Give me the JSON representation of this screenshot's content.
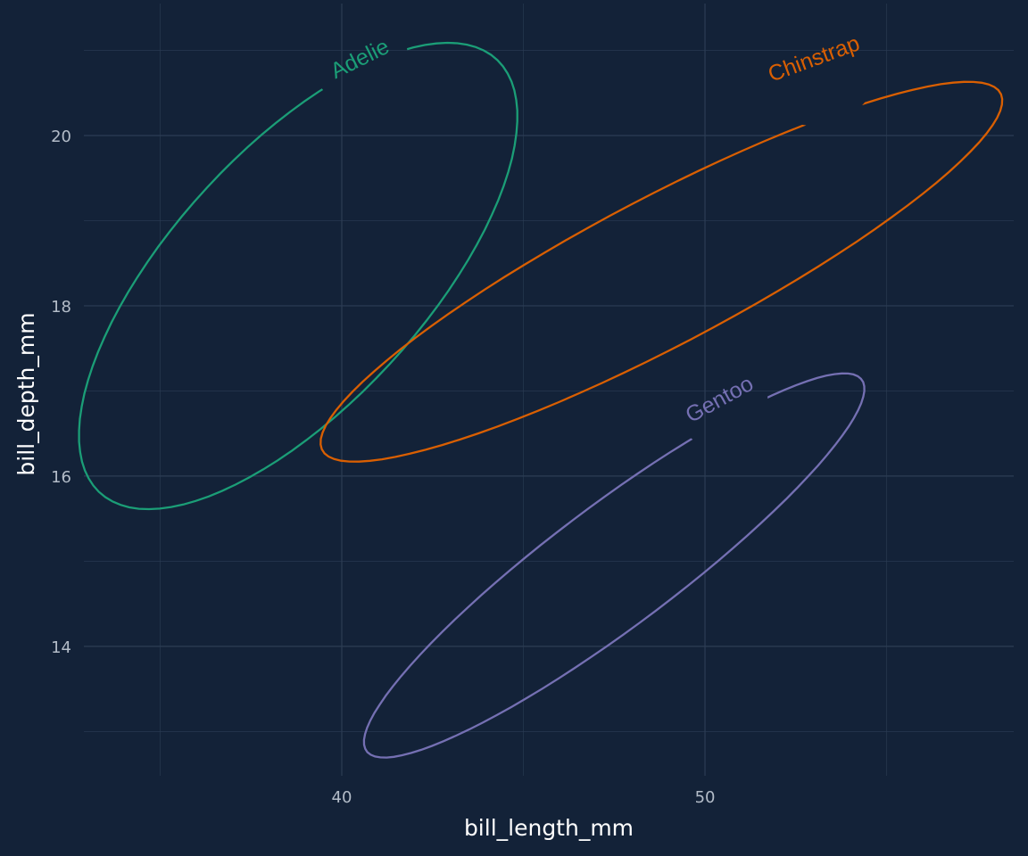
{
  "chart_data": {
    "type": "ellipse",
    "title": "",
    "xlabel": "bill_length_mm",
    "ylabel": "bill_depth_mm",
    "xlim": [
      32.9,
      58.5
    ],
    "ylim": [
      12.48,
      21.55
    ],
    "x_ticks": [
      40,
      50
    ],
    "x_minor_ticks": [
      35,
      45,
      55
    ],
    "y_ticks": [
      14,
      16,
      18,
      20
    ],
    "y_minor_ticks": [
      13,
      15,
      17,
      19,
      21
    ],
    "grid": true,
    "legend": "none",
    "background": "#132238",
    "grid_color": "#2c3d54",
    "series": [
      {
        "name": "Adelie",
        "color": "#1b9e77",
        "center": [
          38.8,
          18.35
        ],
        "a": 6.35,
        "b": 1.9,
        "angle_deg": 19,
        "label_at": [
          40.5,
          20.9
        ]
      },
      {
        "name": "Chinstrap",
        "color": "#d95f02",
        "center": [
          48.8,
          18.4
        ],
        "a": 9.6,
        "b": 0.95,
        "angle_deg": 12.2,
        "label_at": [
          53.0,
          20.9
        ]
      },
      {
        "name": "Gentoo",
        "color": "#7570b3",
        "center": [
          47.5,
          14.95
        ],
        "a": 7.2,
        "b": 0.85,
        "angle_deg": 17.0,
        "label_at": [
          50.4,
          16.9
        ]
      }
    ]
  }
}
